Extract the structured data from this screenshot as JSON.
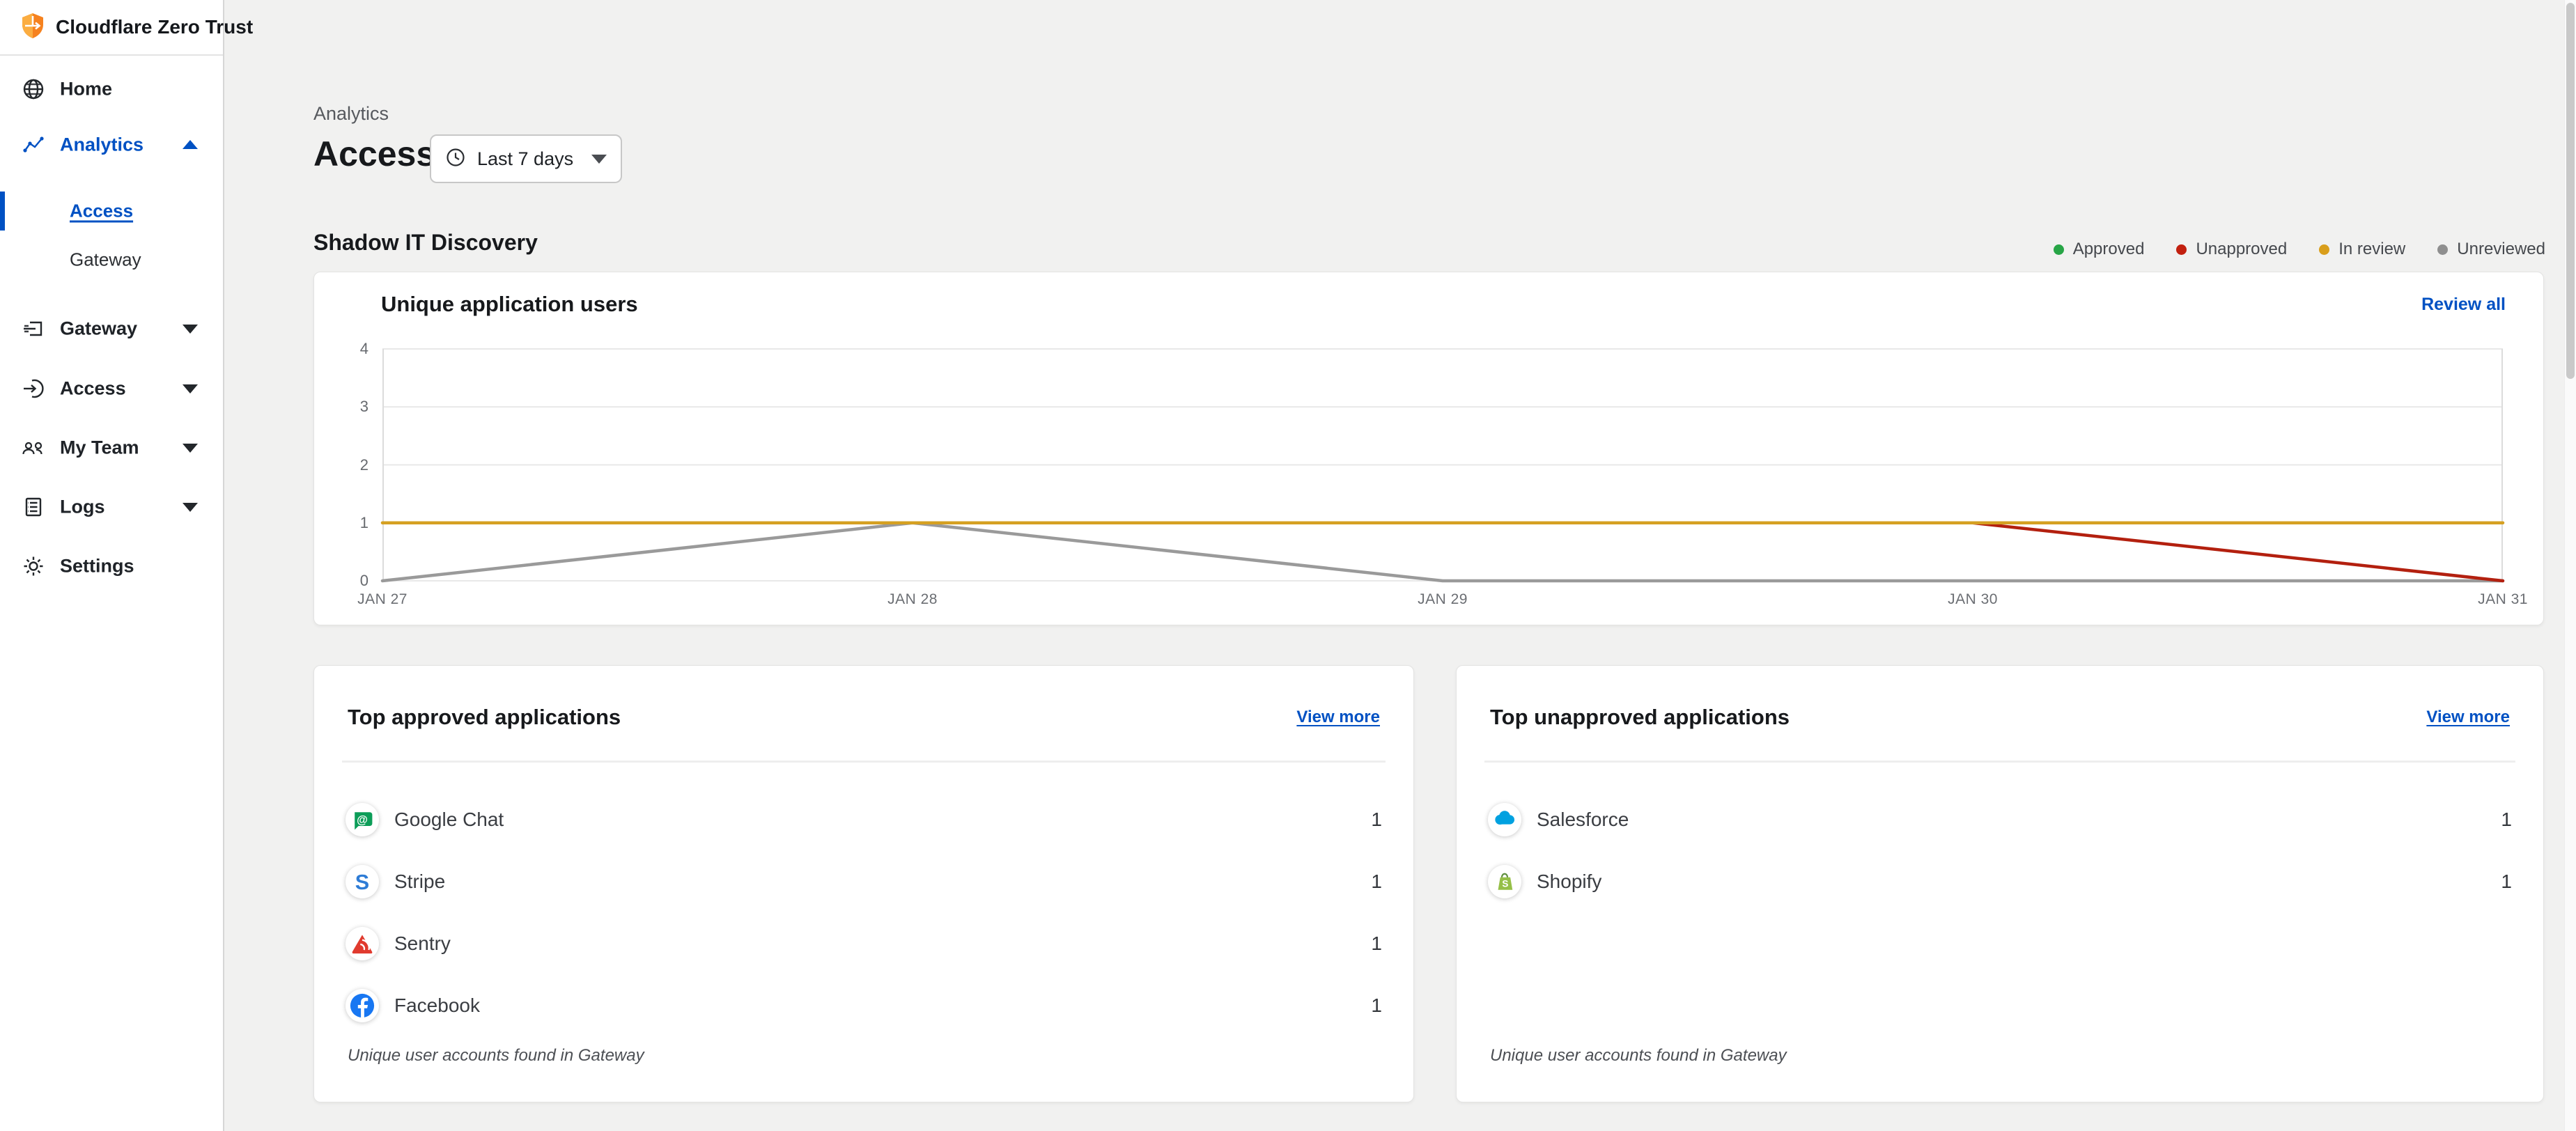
{
  "sidebar": {
    "logo_text": "Cloudflare Zero Trust",
    "home": "Home",
    "analytics": "Analytics",
    "analytics_children": {
      "access": "Access",
      "gateway": "Gateway"
    },
    "gateway": "Gateway",
    "access": "Access",
    "my_team": "My Team",
    "logs": "Logs",
    "settings": "Settings"
  },
  "header": {
    "eyebrow": "Analytics",
    "title": "Access",
    "time_filter": "Last 7 days"
  },
  "shadow_it": {
    "heading": "Shadow IT Discovery",
    "legend": [
      {
        "label": "Approved",
        "color": "#27a546"
      },
      {
        "label": "Unapproved",
        "color": "#c2200f"
      },
      {
        "label": "In review",
        "color": "#d99e1b"
      },
      {
        "label": "Unreviewed",
        "color": "#8f8f8f"
      }
    ]
  },
  "chart_card": {
    "title": "Unique application users",
    "action": "Review all"
  },
  "chart_data": {
    "type": "line",
    "title": "Unique application users",
    "categories": [
      "JAN 27",
      "JAN 28",
      "JAN 29",
      "JAN 30",
      "JAN 31"
    ],
    "series": [
      {
        "name": "Unreviewed",
        "color": "#9a9a9a",
        "values": [
          0,
          1,
          0,
          0,
          0
        ]
      },
      {
        "name": "Unapproved",
        "color": "#b3200f",
        "values": [
          null,
          null,
          null,
          1,
          0
        ]
      },
      {
        "name": "In review",
        "color": "#d5a021",
        "values": [
          1,
          1,
          1,
          1,
          1
        ]
      },
      {
        "name": "Approved",
        "color": "#27a546",
        "values": [
          null,
          null,
          null,
          null,
          null
        ]
      }
    ],
    "ylim": [
      0,
      4
    ],
    "yticks": [
      0,
      1,
      2,
      3,
      4
    ],
    "grid": true,
    "legend": [
      "Approved",
      "Unapproved",
      "In review",
      "Unreviewed"
    ],
    "legend_position": "top-right",
    "xlabel": "",
    "ylabel": ""
  },
  "approved_card": {
    "title": "Top approved applications",
    "action": "View more",
    "rows": [
      {
        "name": "Google Chat",
        "count": "1",
        "icon": "google-chat"
      },
      {
        "name": "Stripe",
        "count": "1",
        "icon": "stripe"
      },
      {
        "name": "Sentry",
        "count": "1",
        "icon": "sentry"
      },
      {
        "name": "Facebook",
        "count": "1",
        "icon": "facebook"
      }
    ],
    "footnote": "Unique user accounts found in Gateway"
  },
  "unapproved_card": {
    "title": "Top unapproved applications",
    "action": "View more",
    "rows": [
      {
        "name": "Salesforce",
        "count": "1",
        "icon": "salesforce"
      },
      {
        "name": "Shopify",
        "count": "1",
        "icon": "shopify"
      }
    ],
    "footnote": "Unique user accounts found in Gateway"
  }
}
